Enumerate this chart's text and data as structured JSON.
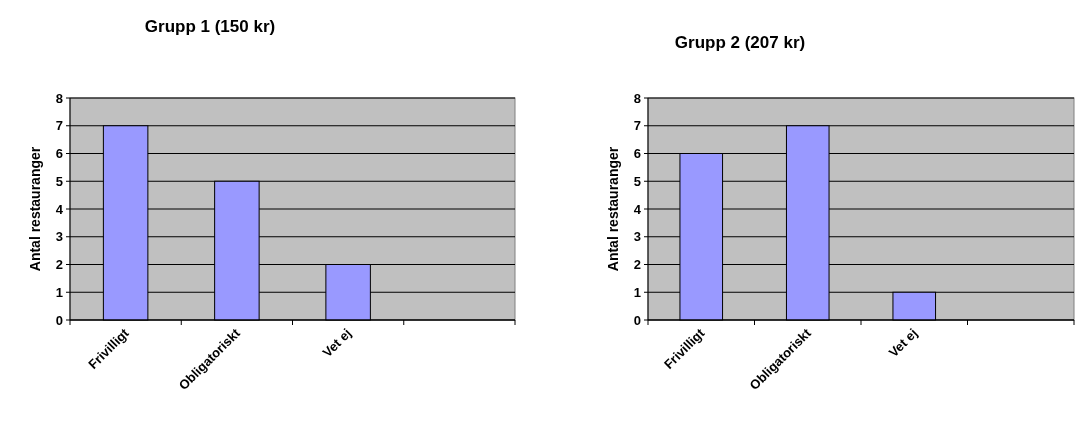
{
  "chart_data": [
    {
      "type": "bar",
      "title": "Grupp 1 (150 kr)",
      "ylabel": "Antal restauranger",
      "categories": [
        "Frivilligt",
        "Obligatoriskt",
        "Vet ej",
        null
      ],
      "values": [
        7,
        5,
        2,
        null
      ],
      "color": "#9999ff",
      "ylim": [
        0,
        8
      ],
      "yticks": [
        0,
        1,
        2,
        3,
        4,
        5,
        6,
        7,
        8
      ],
      "grid": "y"
    },
    {
      "type": "bar",
      "title": "Grupp 2 (207 kr)",
      "ylabel": "Antal restauranger",
      "categories": [
        "Frivilligt",
        "Obligatoriskt",
        "Vet ej",
        null
      ],
      "values": [
        6,
        7,
        1,
        null
      ],
      "color": "#9999ff",
      "ylim": [
        0,
        8
      ],
      "yticks": [
        0,
        1,
        2,
        3,
        4,
        5,
        6,
        7,
        8
      ],
      "grid": "y"
    }
  ]
}
